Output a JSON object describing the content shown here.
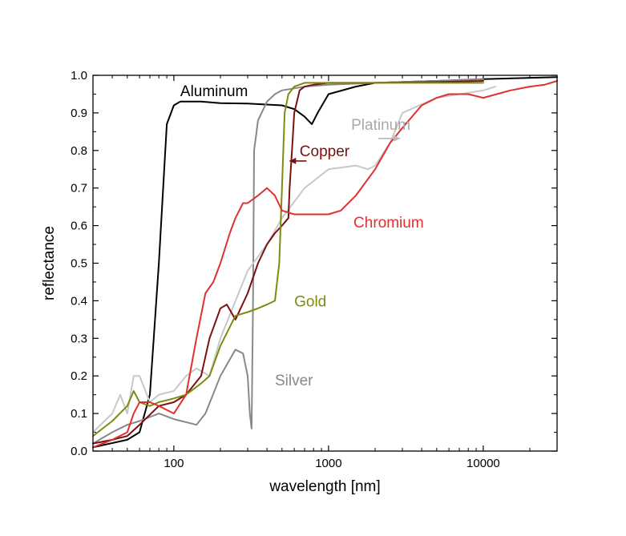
{
  "chart_data": {
    "type": "line",
    "title": "",
    "xlabel": "wavelength [nm]",
    "ylabel": "reflectance",
    "x_scale": "log",
    "xlim": [
      30,
      30000
    ],
    "ylim": [
      0,
      1
    ],
    "x_ticks": [
      100,
      1000,
      10000
    ],
    "x_tick_labels": [
      "100",
      "1000",
      "10000"
    ],
    "y_ticks": [
      0,
      0.1,
      0.2,
      0.3,
      0.4,
      0.5,
      0.6,
      0.7,
      0.8,
      0.9,
      1
    ],
    "y_tick_labels": [
      "0.0",
      "0.1",
      "0.2",
      "0.3",
      "0.4",
      "0.5",
      "0.6",
      "0.7",
      "0.8",
      "0.9",
      "1.0"
    ],
    "grid": false,
    "legend": "inline labels",
    "series": [
      {
        "name": "Aluminum",
        "color": "#000000",
        "x": [
          30,
          50,
          60,
          70,
          80,
          90,
          100,
          110,
          120,
          150,
          200,
          300,
          500,
          600,
          700,
          780,
          850,
          1000,
          1500,
          2000,
          5000,
          10000,
          30000
        ],
        "y": [
          0.01,
          0.03,
          0.05,
          0.15,
          0.5,
          0.87,
          0.92,
          0.93,
          0.93,
          0.93,
          0.926,
          0.925,
          0.92,
          0.91,
          0.89,
          0.87,
          0.9,
          0.95,
          0.97,
          0.98,
          0.985,
          0.99,
          0.995
        ]
      },
      {
        "name": "Silver",
        "color": "#888888",
        "x": [
          30,
          40,
          50,
          60,
          80,
          100,
          140,
          160,
          200,
          250,
          280,
          300,
          310,
          318,
          325,
          330,
          340,
          350,
          400,
          450,
          500,
          700,
          1000,
          2000,
          5000,
          10000
        ],
        "y": [
          0.02,
          0.05,
          0.07,
          0.08,
          0.1,
          0.085,
          0.07,
          0.1,
          0.2,
          0.27,
          0.26,
          0.2,
          0.1,
          0.06,
          0.4,
          0.8,
          0.84,
          0.88,
          0.93,
          0.95,
          0.96,
          0.97,
          0.975,
          0.98,
          0.985,
          0.99
        ]
      },
      {
        "name": "Platinum",
        "color": "#c8c8c8",
        "x": [
          30,
          40,
          45,
          50,
          55,
          60,
          70,
          80,
          100,
          120,
          140,
          170,
          200,
          300,
          400,
          500,
          700,
          1000,
          1500,
          1800,
          2000,
          2500,
          3000,
          5000,
          10000,
          12000
        ],
        "y": [
          0.05,
          0.1,
          0.15,
          0.1,
          0.2,
          0.2,
          0.13,
          0.15,
          0.16,
          0.2,
          0.22,
          0.2,
          0.3,
          0.48,
          0.55,
          0.62,
          0.7,
          0.75,
          0.76,
          0.75,
          0.76,
          0.82,
          0.9,
          0.94,
          0.96,
          0.97
        ]
      },
      {
        "name": "Copper",
        "color": "#7b1010",
        "x": [
          30,
          40,
          50,
          60,
          80,
          100,
          120,
          150,
          170,
          200,
          220,
          250,
          300,
          350,
          400,
          450,
          500,
          550,
          560,
          580,
          600,
          650,
          700,
          800,
          1000,
          2000,
          5000,
          10000
        ],
        "y": [
          0.02,
          0.03,
          0.04,
          0.07,
          0.12,
          0.13,
          0.15,
          0.2,
          0.3,
          0.38,
          0.39,
          0.35,
          0.42,
          0.5,
          0.55,
          0.58,
          0.6,
          0.62,
          0.7,
          0.8,
          0.9,
          0.96,
          0.97,
          0.975,
          0.98,
          0.98,
          0.982,
          0.985
        ]
      },
      {
        "name": "Gold",
        "color": "#7f8a10",
        "x": [
          30,
          40,
          50,
          55,
          60,
          70,
          80,
          100,
          120,
          150,
          170,
          200,
          250,
          300,
          350,
          400,
          450,
          480,
          500,
          520,
          550,
          600,
          700,
          1000,
          2000,
          5000,
          10000
        ],
        "y": [
          0.04,
          0.08,
          0.12,
          0.16,
          0.13,
          0.12,
          0.13,
          0.14,
          0.15,
          0.18,
          0.2,
          0.28,
          0.36,
          0.37,
          0.38,
          0.39,
          0.4,
          0.5,
          0.7,
          0.9,
          0.95,
          0.97,
          0.98,
          0.98,
          0.98,
          0.98,
          0.98
        ]
      },
      {
        "name": "Chromium",
        "color": "#e03030",
        "x": [
          30,
          40,
          50,
          55,
          60,
          70,
          80,
          100,
          120,
          140,
          160,
          180,
          200,
          230,
          250,
          280,
          300,
          350,
          400,
          450,
          500,
          600,
          700,
          1000,
          1200,
          1500,
          2000,
          2500,
          3000,
          4000,
          5000,
          6000,
          8000,
          10000,
          15000,
          20000,
          25000,
          30000
        ],
        "y": [
          0.01,
          0.03,
          0.05,
          0.1,
          0.13,
          0.13,
          0.12,
          0.1,
          0.15,
          0.3,
          0.42,
          0.45,
          0.5,
          0.58,
          0.62,
          0.66,
          0.66,
          0.68,
          0.7,
          0.68,
          0.64,
          0.63,
          0.63,
          0.63,
          0.64,
          0.68,
          0.75,
          0.82,
          0.86,
          0.92,
          0.94,
          0.95,
          0.95,
          0.94,
          0.96,
          0.97,
          0.975,
          0.985
        ]
      }
    ],
    "annotations": [
      {
        "text": "Aluminum",
        "color": "#000000",
        "x": 110,
        "y": 0.945
      },
      {
        "text": "Platinum",
        "color": "#a8a8a8",
        "x": 1400,
        "y": 0.855
      },
      {
        "text": "Copper",
        "color": "#7b1010",
        "x": 650,
        "y": 0.785
      },
      {
        "text": "Chromium",
        "color": "#e03030",
        "x": 1450,
        "y": 0.595
      },
      {
        "text": "Gold",
        "color": "#7f8a10",
        "x": 600,
        "y": 0.385
      },
      {
        "text": "Silver",
        "color": "#888888",
        "x": 450,
        "y": 0.175
      }
    ],
    "arrows": [
      {
        "from_x": 2100,
        "from_y": 0.832,
        "to_x": 2900,
        "to_y": 0.832,
        "color": "#b8b8b8",
        "target": "Platinum"
      },
      {
        "from_x": 720,
        "from_y": 0.772,
        "to_x": 560,
        "to_y": 0.772,
        "color": "#7b1010",
        "target": "Copper"
      }
    ]
  }
}
